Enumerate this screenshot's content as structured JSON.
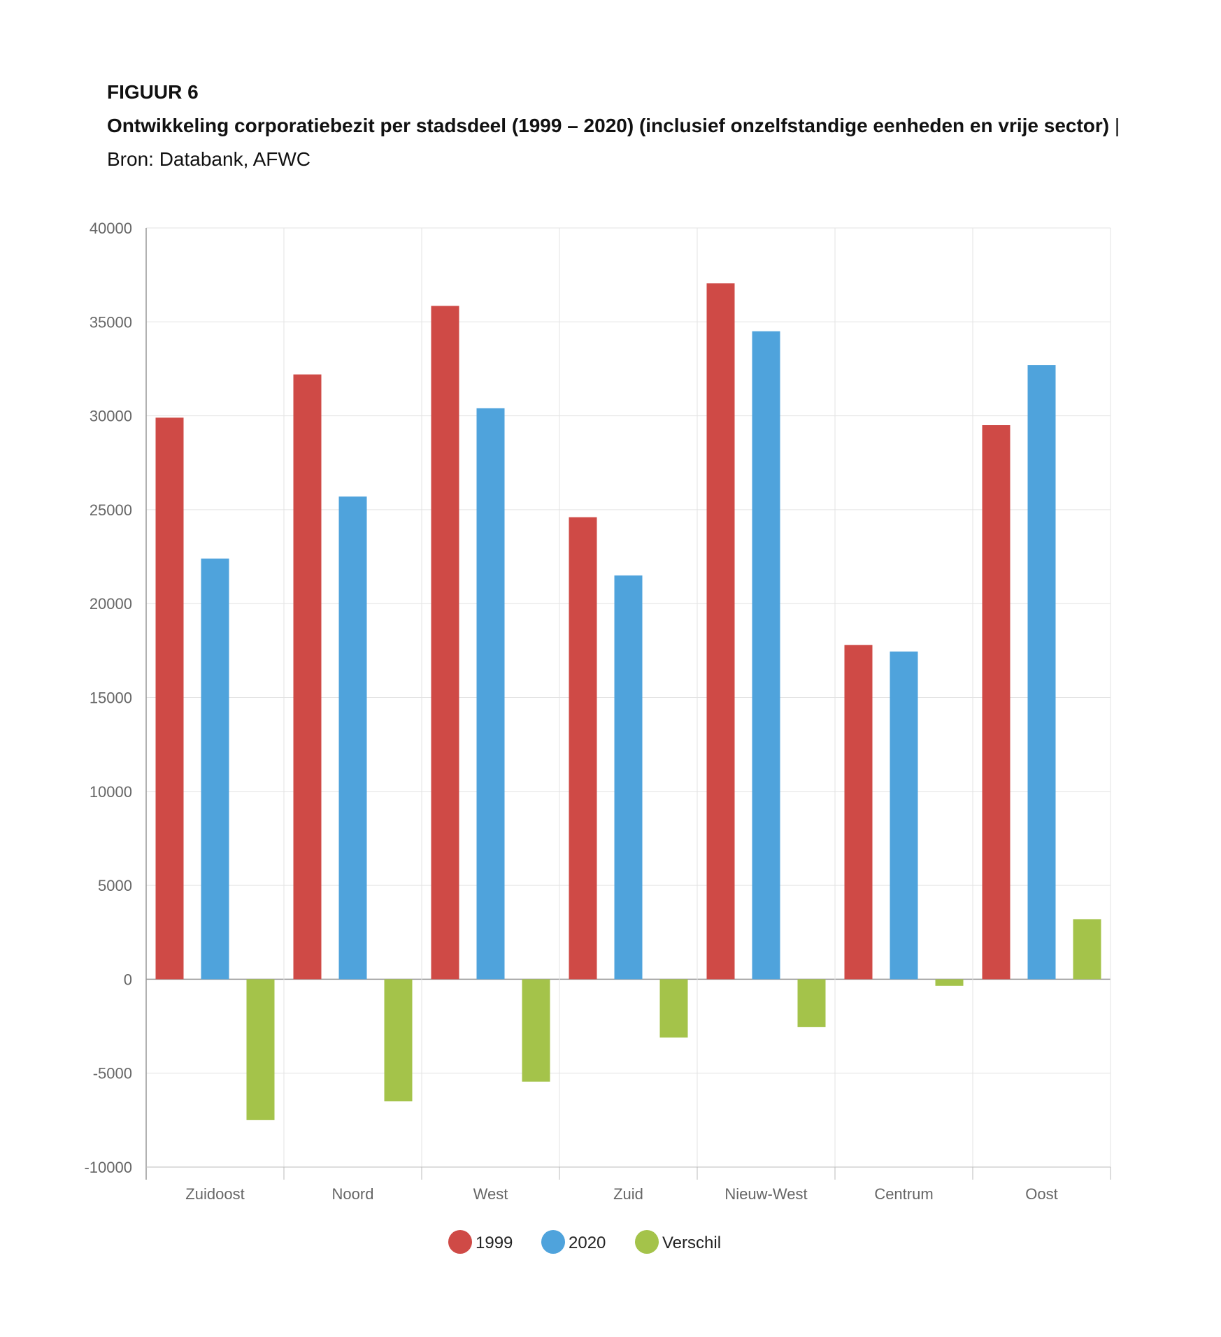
{
  "figure": {
    "label": "FIGUUR 6",
    "title": "Ontwikkeling corporatiebezit per stadsdeel (1999 – 2020) (inclusief onzelfstandige eenheden en vrije sector)",
    "separator": " | ",
    "source": "Bron: Databank, AFWC"
  },
  "chart_data": {
    "type": "bar",
    "categories": [
      "Zuidoost",
      "Noord",
      "West",
      "Zuid",
      "Nieuw-West",
      "Centrum",
      "Oost"
    ],
    "series": [
      {
        "name": "1999",
        "color": "#cf4a46",
        "values": [
          29900,
          32200,
          35850,
          24600,
          37050,
          17800,
          29500
        ]
      },
      {
        "name": "2020",
        "color": "#4fa3dc",
        "values": [
          22400,
          25700,
          30400,
          21500,
          34500,
          17450,
          32700
        ]
      },
      {
        "name": "Verschil",
        "color": "#a4c34a",
        "values": [
          -7500,
          -6500,
          -5450,
          -3100,
          -2550,
          -350,
          3200
        ]
      }
    ],
    "ylim": [
      -10000,
      40000
    ],
    "yticks": [
      40000,
      35000,
      30000,
      25000,
      20000,
      15000,
      10000,
      5000,
      0,
      -5000,
      -10000
    ],
    "grid": true,
    "legend_position": "bottom-center",
    "title": "",
    "xlabel": "",
    "ylabel": ""
  }
}
